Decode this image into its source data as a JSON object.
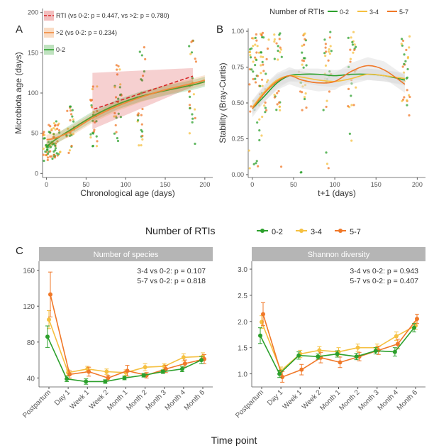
{
  "panel_letters": {
    "a": "A",
    "b": "B",
    "c": "C"
  },
  "colors": {
    "g02": "#2ca02c",
    "g34": "#f5c040",
    "g57": "#f07828",
    "rti": "#d62728",
    "gt2": "#f08a3a",
    "band_gray": "#d9d9d9",
    "strip": "#b5b5b5"
  },
  "chart_data": [
    {
      "id": "A",
      "type": "scatter",
      "xlabel": "Chronological age (days)",
      "ylabel": "Microbiota age (days)",
      "xlim": [
        -5,
        210
      ],
      "ylim": [
        -5,
        205
      ],
      "x_ticks": [
        0,
        50,
        100,
        150,
        200
      ],
      "y_ticks": [
        0,
        50,
        100,
        150,
        200
      ],
      "legend": [
        {
          "label": "RTI  (vs 0-2: p = 0.447, vs >2: p = 0.780)",
          "color": "#d62728",
          "dash": true
        },
        {
          "label": ">2  (vs 0-2: p = 0.234)",
          "color": "#f08a3a",
          "dash": false
        },
        {
          "label": "0-2",
          "color": "#2ca02c",
          "dash": false
        }
      ],
      "series": [
        {
          "name": "0-2",
          "x": [
            0,
            7,
            14,
            30,
            60,
            90,
            120,
            150,
            185,
            200
          ],
          "y": [
            33,
            39,
            44,
            54,
            72,
            86,
            96,
            103,
            110,
            114
          ]
        },
        {
          "name": ">2",
          "x": [
            0,
            7,
            14,
            30,
            60,
            90,
            120,
            150,
            185,
            200
          ],
          "y": [
            42,
            43,
            45,
            52,
            70,
            84,
            95,
            104,
            112,
            116
          ]
        },
        {
          "name": "RTI",
          "x": [
            60,
            185
          ],
          "y": [
            80,
            121
          ]
        }
      ],
      "point_timepoints": [
        0,
        7,
        14,
        30,
        60,
        90,
        120,
        185
      ]
    },
    {
      "id": "B",
      "type": "scatter",
      "legend_title": "Number of RTIs",
      "xlabel": "t+1 (days)",
      "ylabel": "Stability (Bray-Curtis)",
      "xlim": [
        -5,
        210
      ],
      "ylim": [
        -0.02,
        1.02
      ],
      "x_ticks": [
        0,
        50,
        100,
        150,
        200
      ],
      "y_ticks": [
        "0.00",
        "0.25",
        "0.50",
        "0.75",
        "1.00"
      ],
      "series": [
        {
          "name": "0-2",
          "x": [
            0,
            15,
            30,
            45,
            60,
            80,
            100,
            120,
            140,
            160,
            185
          ],
          "y": [
            0.46,
            0.55,
            0.64,
            0.69,
            0.7,
            0.7,
            0.69,
            0.7,
            0.7,
            0.69,
            0.66
          ]
        },
        {
          "name": "3-4",
          "x": [
            0,
            15,
            30,
            45,
            60,
            80,
            100,
            120,
            140,
            160,
            185
          ],
          "y": [
            0.47,
            0.58,
            0.66,
            0.69,
            0.68,
            0.66,
            0.65,
            0.67,
            0.7,
            0.69,
            0.67
          ]
        },
        {
          "name": "5-7",
          "x": [
            0,
            15,
            30,
            45,
            60,
            80,
            100,
            120,
            140,
            160,
            185
          ],
          "y": [
            0.46,
            0.57,
            0.65,
            0.69,
            0.66,
            0.64,
            0.65,
            0.72,
            0.76,
            0.73,
            0.63
          ]
        }
      ],
      "point_timepoints": [
        1,
        8,
        15,
        31,
        61,
        91,
        121,
        186
      ]
    },
    {
      "id": "C1",
      "type": "line",
      "title": "Number of species",
      "categories": [
        "Postpartum",
        "Day 1",
        "Week 1",
        "Week 2",
        "Month 1",
        "Month 2",
        "Month 3",
        "Month 4",
        "Month 6"
      ],
      "yticks": [
        40,
        80,
        120,
        160
      ],
      "ylim": [
        30,
        170
      ],
      "annotations": [
        "3-4 vs 0-2: p = 0.107",
        "5-7 vs 0-2: p = 0.818"
      ],
      "series": [
        {
          "name": "0-2",
          "values": [
            86,
            39,
            36,
            36,
            40,
            43,
            47,
            50,
            60
          ],
          "err": [
            12,
            3,
            3,
            2,
            2,
            2,
            2,
            3,
            4
          ]
        },
        {
          "name": "3-4",
          "values": [
            105,
            46,
            50,
            47,
            46,
            52,
            53,
            63,
            64
          ],
          "err": [
            10,
            3,
            3,
            3,
            3,
            4,
            3,
            4,
            4
          ]
        },
        {
          "name": "5-7",
          "values": [
            133,
            44,
            47,
            40,
            48,
            43,
            50,
            56,
            61
          ],
          "err": [
            25,
            4,
            5,
            3,
            6,
            3,
            4,
            4,
            5
          ]
        }
      ]
    },
    {
      "id": "C2",
      "type": "line",
      "title": "Shannon diversity",
      "categories": [
        "Postpartum",
        "Day 1",
        "Week 1",
        "Week 2",
        "Month 1",
        "Month 2",
        "Month 3",
        "Month 4",
        "Month 6"
      ],
      "yticks": [
        "1.0",
        "1.5",
        "2.0",
        "2.5",
        "3.0"
      ],
      "ylim": [
        0.75,
        3.15
      ],
      "annotations": [
        "3-4 vs 0-2: p = 0.943",
        "5-7 vs 0-2: p = 0.407"
      ],
      "series": [
        {
          "name": "0-2",
          "values": [
            1.73,
            1.0,
            1.35,
            1.33,
            1.38,
            1.33,
            1.44,
            1.42,
            1.88
          ],
          "err": [
            0.15,
            0.07,
            0.07,
            0.05,
            0.06,
            0.06,
            0.06,
            0.08,
            0.08
          ]
        },
        {
          "name": "3-4",
          "values": [
            1.99,
            1.06,
            1.38,
            1.45,
            1.42,
            1.5,
            1.5,
            1.72,
            1.92
          ],
          "err": [
            0.12,
            0.07,
            0.07,
            0.07,
            0.08,
            0.07,
            0.07,
            0.08,
            0.07
          ]
        },
        {
          "name": "5-7",
          "values": [
            2.14,
            0.94,
            1.08,
            1.31,
            1.22,
            1.33,
            1.45,
            1.57,
            2.05
          ],
          "err": [
            0.22,
            0.1,
            0.1,
            0.1,
            0.1,
            0.08,
            0.08,
            0.09,
            0.09
          ]
        }
      ]
    }
  ],
  "legend_c": {
    "title": "Number of RTIs",
    "items": [
      "0-2",
      "3-4",
      "5-7"
    ]
  },
  "x_common_label": "Time point"
}
